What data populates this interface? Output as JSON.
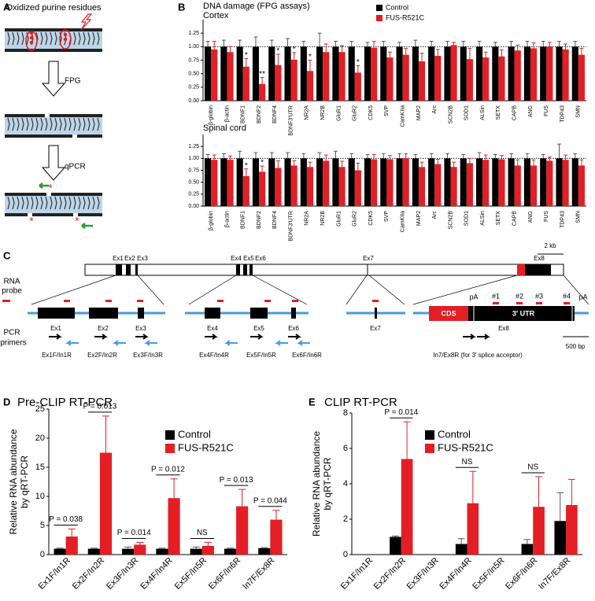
{
  "panel_labels": [
    "A",
    "B",
    "C",
    "D",
    "E"
  ],
  "panel_a": {
    "title": "Oxidized purine residues",
    "step1": "FPG",
    "step2": "qPCR"
  },
  "panel_b": {
    "title": "DNA damage (FPG assays)"
  },
  "panel_c": {
    "gene_exons": [
      "Ex1",
      "Ex2",
      "Ex3",
      "Ex4",
      "Ex5",
      "Ex6",
      "Ex7",
      "Ex8"
    ],
    "scale_gene": "2 kb",
    "rna_probe": [
      "RNA",
      "probe"
    ],
    "pcr_primers": [
      "PCR",
      "primers"
    ],
    "cds": "CDS",
    "utr": "3′ UTR",
    "pa": [
      "pA",
      "pA"
    ],
    "sites": [
      "#1",
      "#2",
      "#3",
      "#4"
    ],
    "scale_detail": "500 bp",
    "primer_pairs": [
      "Ex1F/In1R",
      "Ex2F/In2R",
      "Ex3F/In3R",
      "Ex4F/In4R",
      "Ex5F/In5R",
      "Ex6F/In6R",
      "In7/Ex8R (for 3′ splice acceptor)"
    ]
  },
  "chart_data": [
    {
      "type": "bar",
      "title": "Cortex",
      "categories": [
        "β-globin",
        "β-actin",
        "BDNF1",
        "BDNF2",
        "BDNF4",
        "BDNF3′UTR",
        "NR2A",
        "NR2B",
        "GluR1",
        "GluR2",
        "CDK5",
        "SVP",
        "CamKIIa",
        "MAP2",
        "Arc",
        "SCN2B",
        "SOD1",
        "ALSin",
        "SETX",
        "CAPB",
        "ANG",
        "FUS",
        "TDP43",
        "SMN"
      ],
      "series": [
        {
          "name": "Control",
          "color": "#000000",
          "values": [
            1,
            1,
            1,
            1,
            1,
            1,
            1,
            1,
            1,
            1,
            1,
            1,
            1,
            1,
            1,
            1,
            1,
            1,
            1,
            1,
            1,
            1,
            1,
            1
          ],
          "errors": [
            0.1,
            0.12,
            0.12,
            0.18,
            0.12,
            0.15,
            0.1,
            0.25,
            0.1,
            0.1,
            0.08,
            0.1,
            0.08,
            0.12,
            0.1,
            0.1,
            0.1,
            0.1,
            0.08,
            0.1,
            0.1,
            0.1,
            0.1,
            0.1
          ]
        },
        {
          "name": "FUS-R521C",
          "color": "#e31e24",
          "values": [
            0.95,
            0.9,
            0.63,
            0.31,
            0.66,
            0.76,
            0.55,
            0.9,
            0.9,
            0.52,
            0.98,
            0.8,
            0.85,
            0.73,
            0.83,
            1.03,
            0.77,
            0.8,
            0.82,
            0.93,
            0.97,
            1.0,
            0.95,
            0.85
          ],
          "errors": [
            0.15,
            0.1,
            0.15,
            0.12,
            0.2,
            0.13,
            0.2,
            0.15,
            0.12,
            0.13,
            0.12,
            0.1,
            0.12,
            0.15,
            0.12,
            0.05,
            0.2,
            0.1,
            0.12,
            0.1,
            0.1,
            0.08,
            0.1,
            0.12
          ]
        }
      ],
      "significance": [
        null,
        null,
        "*",
        "**",
        "*",
        "*",
        "*",
        null,
        null,
        "*",
        null,
        null,
        null,
        null,
        null,
        null,
        null,
        null,
        null,
        null,
        null,
        null,
        null,
        null
      ],
      "ylim": [
        0,
        1.5
      ],
      "yticks": [
        {
          "value": 0,
          "label": "0.00"
        },
        {
          "value": 0.25,
          "label": "0.25"
        },
        {
          "value": 0.5,
          "label": "0.50"
        },
        {
          "value": 0.75,
          "label": "0.75"
        },
        {
          "value": 1,
          "label": "1.00"
        },
        {
          "value": 1.25,
          "label": "1.25"
        }
      ],
      "reference_line": 1,
      "legend": "upper center"
    },
    {
      "type": "bar",
      "title": "Spinal cord",
      "categories": [
        "β-globin",
        "β-actin",
        "BDNF1",
        "BDNF2",
        "BDNF4",
        "BDNF3′UTR",
        "NR2A",
        "NR2B",
        "GluR1",
        "GluR2",
        "CDK5",
        "SVP",
        "CamKIIa",
        "MAP2",
        "Arc",
        "SCN2B",
        "SOD1",
        "ALSin",
        "SETX",
        "CAPB",
        "ANG",
        "FUS",
        "TDP43",
        "SMN"
      ],
      "series": [
        {
          "name": "Control",
          "color": "#000000",
          "values": [
            1,
            1,
            1,
            1,
            1,
            1,
            1,
            1,
            1,
            1,
            1,
            1,
            1,
            1,
            1,
            1,
            1,
            1,
            1,
            1,
            1,
            1,
            1,
            1
          ],
          "errors": [
            0.08,
            0.1,
            0.15,
            0.12,
            0.12,
            0.12,
            0.1,
            0.12,
            0.15,
            0.1,
            0.08,
            0.1,
            0.1,
            0.08,
            0.1,
            0.1,
            0.08,
            0.12,
            0.08,
            0.1,
            0.1,
            0.08,
            0.3,
            0.1
          ]
        },
        {
          "name": "FUS-R521C",
          "color": "#e31e24",
          "values": [
            0.97,
            0.97,
            0.63,
            0.72,
            0.8,
            0.85,
            0.82,
            0.95,
            0.82,
            0.75,
            0.98,
            0.98,
            1.0,
            0.82,
            0.88,
            0.82,
            0.9,
            0.97,
            0.98,
            0.85,
            0.85,
            0.95,
            0.97,
            0.85
          ],
          "errors": [
            0.1,
            0.08,
            0.15,
            0.12,
            0.15,
            0.1,
            0.1,
            0.12,
            0.12,
            0.15,
            0.1,
            0.08,
            0.1,
            0.1,
            0.1,
            0.1,
            0.1,
            0.1,
            0.08,
            0.12,
            0.12,
            0.08,
            0.1,
            0.12
          ]
        }
      ],
      "significance": [
        null,
        null,
        "*",
        "*",
        null,
        null,
        null,
        null,
        null,
        null,
        null,
        null,
        null,
        null,
        null,
        null,
        null,
        null,
        null,
        null,
        null,
        null,
        null,
        null
      ],
      "ylim": [
        0,
        1.5
      ],
      "yticks": [
        {
          "value": 0,
          "label": "0.00"
        },
        {
          "value": 0.25,
          "label": "0.25"
        },
        {
          "value": 0.5,
          "label": "0.50"
        },
        {
          "value": 0.75,
          "label": "0.75"
        },
        {
          "value": 1,
          "label": "1.00"
        },
        {
          "value": 1.25,
          "label": "1.25"
        }
      ],
      "reference_line": 1,
      "legend": null
    },
    {
      "type": "bar",
      "title": "Pre-CLIP RT-PCR",
      "y_label": [
        "Relative RNA abundance",
        "by qRT-PCR"
      ],
      "categories": [
        "Ex1F/In1R",
        "Ex2F/In2R",
        "Ex3F/In3R",
        "Ex4F/In4R",
        "Ex5F/In5R",
        "Ex6F/In6R",
        "In7F/Ex8R"
      ],
      "series": [
        {
          "name": "Control",
          "color": "#000000",
          "values": [
            1,
            1,
            1,
            1,
            1,
            1,
            1.1
          ],
          "errors": [
            0.1,
            0.1,
            0.3,
            0.1,
            0.3,
            0.1,
            0.1
          ]
        },
        {
          "name": "FUS-R521C",
          "color": "#e31e24",
          "values": [
            3.1,
            17.5,
            1.7,
            9.7,
            1.5,
            8.3,
            6.0
          ],
          "errors": [
            1.3,
            6.3,
            0.4,
            3.3,
            0.6,
            2.9,
            1.6
          ]
        }
      ],
      "significance": [
        "P = 0.038",
        "P = 0.013",
        "P = 0.014",
        "P = 0.012",
        "NS",
        "P = 0.013",
        "P = 0.044"
      ],
      "significance_bracket": true,
      "ylim": [
        0,
        25
      ],
      "yticks": [
        0,
        5,
        10,
        15,
        20,
        25
      ],
      "legend": "upper right"
    },
    {
      "type": "bar",
      "title": "CLIP RT-PCR",
      "y_label": [
        "Relative RNA abundance",
        "by qRT-PCR"
      ],
      "categories": [
        "Ex1F/In1R",
        "Ex2F/In2R",
        "Ex3F/In3R",
        "Ex4F/In4R",
        "Ex5F/In5R",
        "Ex6F/In6R",
        "In7F/Ex8R"
      ],
      "series": [
        {
          "name": "Control",
          "color": "#000000",
          "values": [
            null,
            1.0,
            null,
            0.6,
            null,
            0.6,
            1.9
          ],
          "errors": [
            null,
            0.05,
            null,
            0.3,
            null,
            0.25,
            1.6
          ]
        },
        {
          "name": "FUS-R521C",
          "color": "#e31e24",
          "values": [
            null,
            5.4,
            null,
            2.9,
            null,
            2.7,
            2.8
          ],
          "errors": [
            null,
            2.1,
            null,
            1.8,
            null,
            1.7,
            1.45
          ]
        }
      ],
      "significance": [
        null,
        "P = 0.014",
        null,
        "NS",
        null,
        "NS",
        null
      ],
      "significance_bracket": true,
      "ylim": [
        0,
        8
      ],
      "yticks": [
        0,
        2,
        4,
        6,
        8
      ],
      "legend": "upper right"
    }
  ]
}
